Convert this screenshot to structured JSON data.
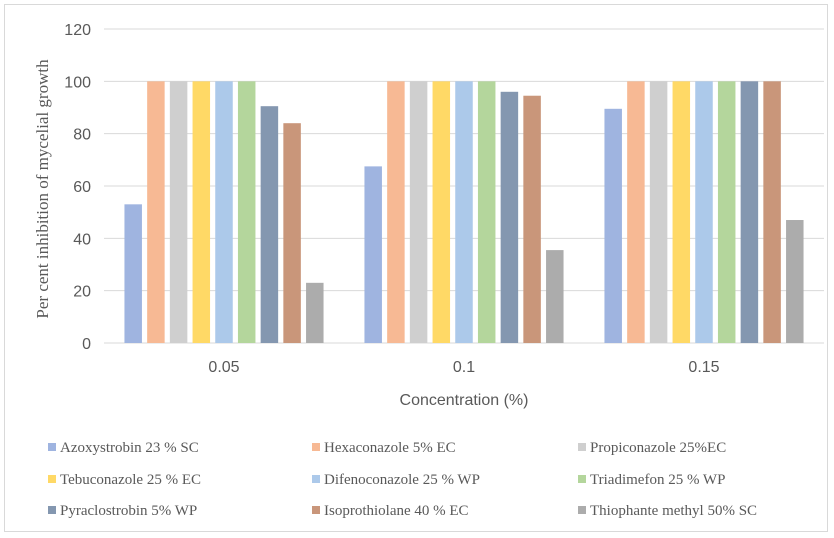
{
  "chart_data": {
    "type": "bar",
    "title": "",
    "xlabel": "Concentration (%)",
    "ylabel": "Per cent inhibition of mycelial  growth",
    "categories": [
      "0.05",
      "0.1",
      "0.15"
    ],
    "ylim": [
      0,
      120
    ],
    "yticks": [
      "0",
      "20",
      "40",
      "60",
      "80",
      "100",
      "120"
    ],
    "grid": "horizontal",
    "legend_position": "bottom",
    "series": [
      {
        "name": "Azoxystrobin 23 % SC",
        "color": "#9fb4e0",
        "values": [
          53,
          67.5,
          89.5
        ]
      },
      {
        "name": "Hexaconazole 5% EC",
        "color": "#f7b994",
        "values": [
          100,
          100,
          100
        ]
      },
      {
        "name": "Propiconazole 25%EC",
        "color": "#cfcfcf",
        "values": [
          100,
          100,
          100
        ]
      },
      {
        "name": "Tebuconazole 25 % EC",
        "color": "#ffd966",
        "values": [
          100,
          100,
          100
        ]
      },
      {
        "name": "Difenoconazole 25 % WP",
        "color": "#acc9ea",
        "values": [
          100,
          100,
          100
        ]
      },
      {
        "name": "Triadimefon 25 % WP",
        "color": "#b4d69c",
        "values": [
          100,
          100,
          100
        ]
      },
      {
        "name": "Pyraclostrobin 5% WP",
        "color": "#8497b0",
        "values": [
          90.5,
          96,
          100
        ]
      },
      {
        "name": "Isoprothiolane 40 % EC",
        "color": "#c9967a",
        "values": [
          84,
          94.5,
          100
        ]
      },
      {
        "name": "Thiophante methyl 50% SC",
        "color": "#acacac",
        "values": [
          23,
          35.5,
          47
        ]
      }
    ]
  }
}
